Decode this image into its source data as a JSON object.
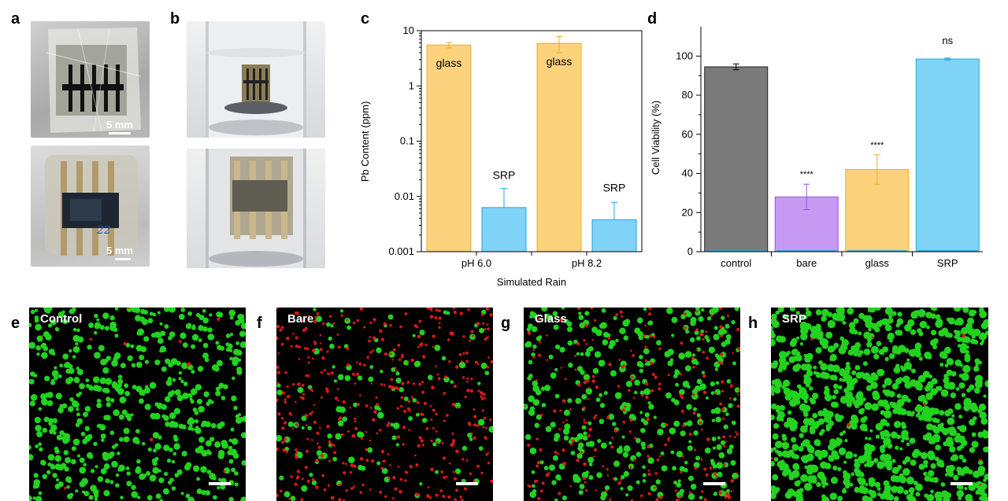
{
  "panels": {
    "a": "a",
    "b": "b",
    "c": "c",
    "d": "d",
    "e": "e",
    "f": "f",
    "g": "g",
    "h": "h"
  },
  "photos": {
    "a_top_scale": "5 mm",
    "a_bottom_scale": "5 mm",
    "a_bottom_handwriting": "22"
  },
  "colors": {
    "glass": "#fcd27c",
    "glass_edge": "#f0ac2a",
    "srp": "#7fd3f7",
    "srp_edge": "#23a7e0",
    "control": "#7a7a7a",
    "bare": "#c69af2",
    "bare_edge": "#9a55dd",
    "live_cell": "#22d21f",
    "dead_cell": "#e01818"
  },
  "chart_data": [
    {
      "type": "bar",
      "panel": "c",
      "ylabel": "Pb Content (ppm)",
      "xlabel": "Simulated Rain",
      "yscale": "log",
      "ylim": [
        0.001,
        10
      ],
      "yticks": [
        "0.001",
        "0.01",
        "0.1",
        "1",
        "10"
      ],
      "categories": [
        "pH 6.0",
        "pH 8.2"
      ],
      "series": [
        {
          "name": "glass",
          "values": [
            5.5,
            5.9
          ],
          "err": [
            0.6,
            1.9
          ]
        },
        {
          "name": "SRP",
          "values": [
            0.0063,
            0.0038
          ],
          "err": [
            0.0077,
            0.004
          ]
        }
      ]
    },
    {
      "type": "bar",
      "panel": "d",
      "ylabel": "Cell Viability (%)",
      "ylim": [
        0,
        115
      ],
      "yticks": [
        "0",
        "20",
        "40",
        "60",
        "80",
        "100"
      ],
      "categories": [
        "control",
        "bare",
        "glass",
        "SRP"
      ],
      "values": [
        94.5,
        28,
        42,
        98.5
      ],
      "err": [
        1.5,
        6.5,
        7.5,
        0.5
      ],
      "annotations": [
        "",
        "****",
        "****",
        "ns"
      ]
    }
  ],
  "micrographs": [
    {
      "label": "Control",
      "live": 560,
      "dead": 12,
      "seed": 11
    },
    {
      "label": "Bare",
      "live": 120,
      "dead": 420,
      "seed": 23
    },
    {
      "label": "Glass",
      "live": 380,
      "dead": 240,
      "seed": 37
    },
    {
      "label": "SRP",
      "live": 900,
      "dead": 8,
      "seed": 53
    }
  ]
}
